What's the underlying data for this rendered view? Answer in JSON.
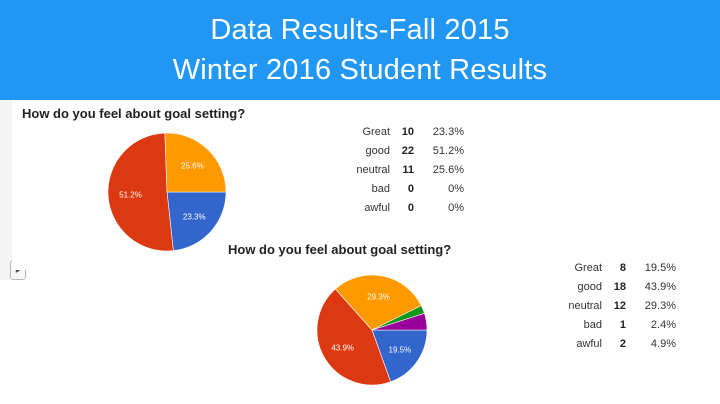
{
  "header": {
    "title_line1": "Data Results-Fall 2015",
    "title_line2": "Winter 2016 Student Results"
  },
  "chart_data": [
    {
      "type": "pie",
      "title": "How do you feel about goal setting?",
      "categories": [
        "Great",
        "good",
        "neutral",
        "bad",
        "awful"
      ],
      "counts": [
        10,
        22,
        11,
        0,
        0
      ],
      "percent_labels": [
        "23.3%",
        "51.2%",
        "25.6%",
        "0%",
        "0%"
      ],
      "values": [
        23.3,
        51.2,
        25.6,
        0,
        0
      ],
      "colors": [
        "#3366cc",
        "#dc3912",
        "#ff9900",
        "#109618",
        "#990099"
      ]
    },
    {
      "type": "pie",
      "title": "How do you feel about goal setting?",
      "categories": [
        "Great",
        "good",
        "neutral",
        "bad",
        "awful"
      ],
      "counts": [
        8,
        18,
        12,
        1,
        2
      ],
      "percent_labels": [
        "19.5%",
        "43.9%",
        "29.3%",
        "2.4%",
        "4.9%"
      ],
      "values": [
        19.5,
        43.9,
        29.3,
        2.4,
        4.9
      ],
      "colors": [
        "#3366cc",
        "#dc3912",
        "#ff9900",
        "#109618",
        "#990099"
      ]
    }
  ]
}
